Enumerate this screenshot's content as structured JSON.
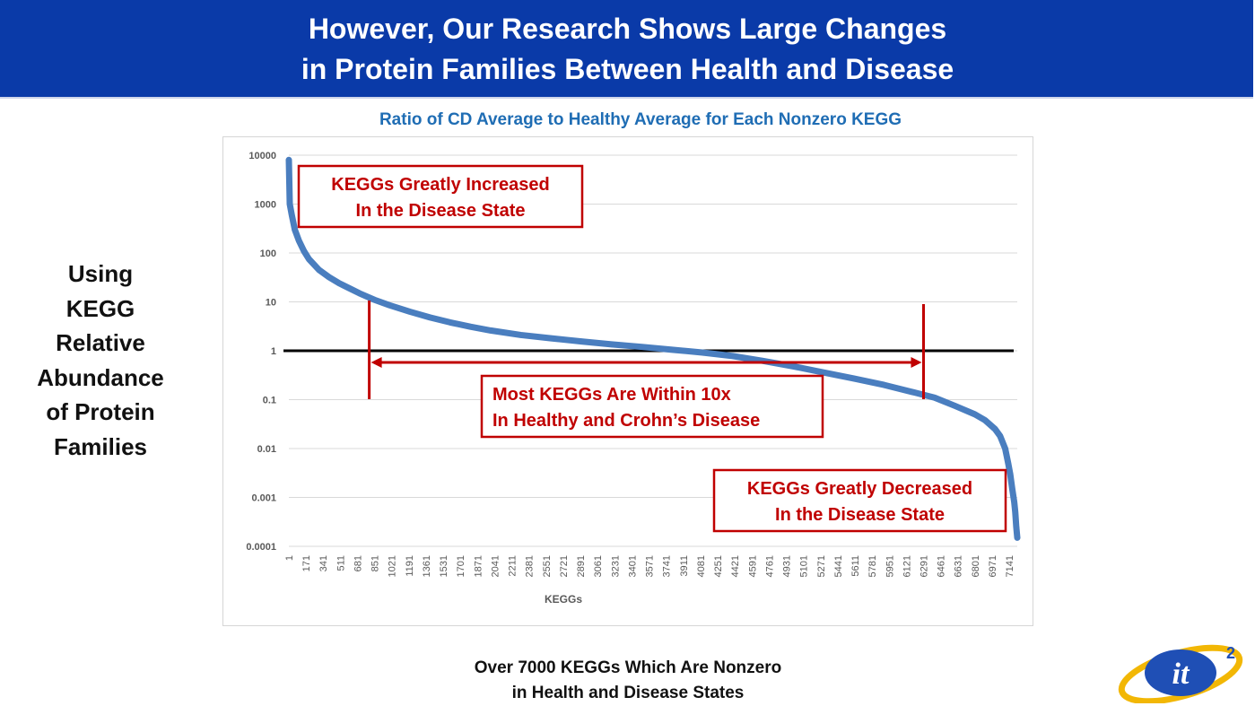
{
  "header": {
    "title_line1": "However, Our Research Shows Large Changes",
    "title_line2": "in Protein Families Between Health and Disease"
  },
  "side_label": [
    "Using",
    "KEGG",
    "Relative",
    "Abundance",
    "of Protein",
    "Families"
  ],
  "footnote": {
    "line1": "Over 7000 KEGGs Which Are Nonzero",
    "line2": "in Health and Disease States"
  },
  "logo": {
    "text": "it",
    "superscript": "2"
  },
  "colors": {
    "banner": "#0a3aa8",
    "series": "#4a7ebf",
    "annotation": "#c00000",
    "chart_title": "#1f6db4"
  },
  "chart_data": {
    "type": "line",
    "title": "Ratio of CD Average to Healthy Average for Each Nonzero KEGG",
    "xlabel": "KEGGs",
    "ylabel": "",
    "yscale": "log",
    "ylim": [
      0.0001,
      10000
    ],
    "y_ticks": [
      "10000",
      "1000",
      "100",
      "10",
      "1",
      "0.1",
      "0.01",
      "0.001",
      "0.0001"
    ],
    "x_ticks": [
      "1",
      "171",
      "341",
      "511",
      "681",
      "851",
      "1021",
      "1191",
      "1361",
      "1531",
      "1701",
      "1871",
      "2041",
      "2211",
      "2381",
      "2551",
      "2721",
      "2891",
      "3061",
      "3231",
      "3401",
      "3571",
      "3741",
      "3911",
      "4081",
      "4251",
      "4421",
      "4591",
      "4761",
      "4931",
      "5101",
      "5271",
      "5441",
      "5611",
      "5781",
      "5951",
      "6121",
      "6291",
      "6461",
      "6631",
      "6801",
      "6971",
      "7141"
    ],
    "xlim": [
      1,
      7220
    ],
    "grid": true,
    "reference_line": {
      "y": 1
    },
    "series": [
      {
        "x": [
          1,
          10,
          30,
          60,
          100,
          150,
          200,
          300,
          400,
          500,
          600,
          700,
          850,
          1000,
          1200,
          1400,
          1600,
          1800,
          2000,
          2300,
          2600,
          2900,
          3200,
          3500,
          3800,
          4100,
          4400,
          4700,
          5000,
          5300,
          5600,
          5900,
          6200,
          6400,
          6600,
          6800,
          6900,
          7000,
          7050,
          7100,
          7130,
          7150,
          7170,
          7190,
          7200,
          7210,
          7220
        ],
        "y": [
          8000,
          1000,
          600,
          300,
          180,
          110,
          75,
          45,
          32,
          24,
          19,
          15,
          11,
          8.5,
          6.3,
          4.8,
          3.8,
          3.1,
          2.6,
          2.1,
          1.8,
          1.55,
          1.35,
          1.2,
          1.05,
          0.92,
          0.78,
          0.62,
          0.48,
          0.36,
          0.27,
          0.2,
          0.14,
          0.11,
          0.075,
          0.05,
          0.038,
          0.025,
          0.018,
          0.01,
          0.005,
          0.003,
          0.0015,
          0.0008,
          0.0005,
          0.00025,
          0.00015
        ]
      }
    ],
    "annotations": {
      "increased": [
        "KEGGs Greatly Increased",
        "In the Disease State"
      ],
      "within": [
        "Most KEGGs Are Within 10x",
        "In Healthy and Crohn’s Disease"
      ],
      "decreased": [
        "KEGGs Greatly Decreased",
        "In the Disease State"
      ],
      "range_start_x": 851,
      "range_end_x": 6291
    }
  }
}
